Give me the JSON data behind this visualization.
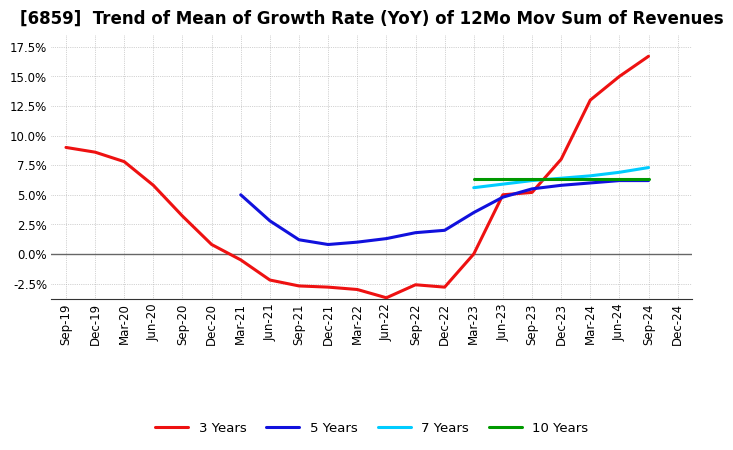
{
  "title": "[6859]  Trend of Mean of Growth Rate (YoY) of 12Mo Mov Sum of Revenues",
  "x_labels": [
    "Sep-19",
    "Dec-19",
    "Mar-20",
    "Jun-20",
    "Sep-20",
    "Dec-20",
    "Mar-21",
    "Jun-21",
    "Sep-21",
    "Dec-21",
    "Mar-22",
    "Jun-22",
    "Sep-22",
    "Dec-22",
    "Mar-23",
    "Jun-23",
    "Sep-23",
    "Dec-23",
    "Mar-24",
    "Jun-24",
    "Sep-24",
    "Dec-24"
  ],
  "y_ticks": [
    -0.025,
    0.0,
    0.025,
    0.05,
    0.075,
    0.1,
    0.125,
    0.15,
    0.175
  ],
  "y_tick_labels": [
    "-2.5%",
    "0.0%",
    "2.5%",
    "5.0%",
    "7.5%",
    "10.0%",
    "12.5%",
    "15.0%",
    "17.5%"
  ],
  "ylim": [
    -0.038,
    0.185
  ],
  "series": {
    "3 Years": {
      "color": "#ee1111",
      "linewidth": 2.2,
      "x_indices": [
        0,
        1,
        2,
        3,
        4,
        5,
        6,
        7,
        8,
        9,
        10,
        11,
        12,
        13,
        14,
        15,
        16,
        17,
        18,
        19,
        20
      ],
      "values": [
        0.09,
        0.086,
        0.078,
        0.058,
        0.032,
        0.008,
        -0.005,
        -0.022,
        -0.027,
        -0.028,
        -0.03,
        -0.037,
        -0.026,
        -0.028,
        0.0,
        0.05,
        0.052,
        0.08,
        0.13,
        0.15,
        0.167
      ]
    },
    "5 Years": {
      "color": "#1111dd",
      "linewidth": 2.2,
      "x_indices": [
        6,
        7,
        8,
        9,
        10,
        11,
        12,
        13,
        14,
        15,
        16,
        17,
        18,
        19,
        20
      ],
      "values": [
        0.05,
        0.028,
        0.012,
        0.008,
        0.01,
        0.013,
        0.018,
        0.02,
        0.035,
        0.048,
        0.055,
        0.058,
        0.06,
        0.062,
        0.062
      ]
    },
    "7 Years": {
      "color": "#00ccff",
      "linewidth": 2.2,
      "x_indices": [
        14,
        15,
        16,
        17,
        18,
        19,
        20
      ],
      "values": [
        0.056,
        0.059,
        0.062,
        0.064,
        0.066,
        0.069,
        0.073
      ]
    },
    "10 Years": {
      "color": "#009900",
      "linewidth": 2.2,
      "x_indices": [
        14,
        15,
        16,
        17,
        18,
        19,
        20
      ],
      "values": [
        0.063,
        0.063,
        0.063,
        0.063,
        0.063,
        0.063,
        0.063
      ]
    }
  },
  "legend_order": [
    "3 Years",
    "5 Years",
    "7 Years",
    "10 Years"
  ],
  "background_color": "#ffffff",
  "plot_bg_color": "#ffffff",
  "grid_color": "#aaaaaa",
  "title_fontsize": 12,
  "tick_fontsize": 8.5,
  "legend_fontsize": 9.5
}
